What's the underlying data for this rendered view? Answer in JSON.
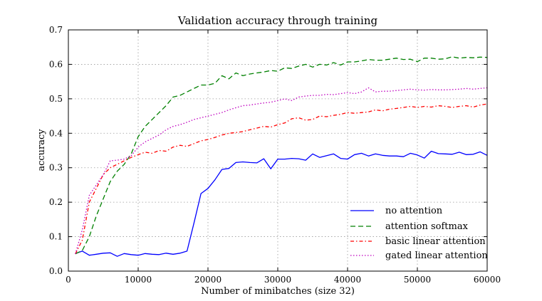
{
  "chart_data": {
    "type": "line",
    "title": "Validation accuracy through training",
    "xlabel": "Number of minibatches (size 32)",
    "ylabel": "accuracy",
    "xlim": [
      0,
      60000
    ],
    "ylim": [
      0,
      0.7
    ],
    "grid": true,
    "legend_position": "lower-right",
    "xticks": [
      0,
      10000,
      20000,
      30000,
      40000,
      50000,
      60000
    ],
    "xtick_labels": [
      "0",
      "10000",
      "20000",
      "30000",
      "40000",
      "50000",
      "60000"
    ],
    "yticks": [
      0,
      0.1,
      0.2,
      0.3,
      0.4,
      0.5,
      0.6,
      0.7
    ],
    "ytick_labels": [
      "0.0",
      "0.1",
      "0.2",
      "0.3",
      "0.4",
      "0.5",
      "0.6",
      "0.7"
    ],
    "x": [
      1000,
      2000,
      3000,
      4000,
      5000,
      6000,
      7000,
      8000,
      9000,
      10000,
      11000,
      12000,
      13000,
      14000,
      15000,
      16000,
      17000,
      18000,
      19000,
      20000,
      21000,
      22000,
      23000,
      24000,
      25000,
      26000,
      27000,
      28000,
      29000,
      30000,
      31000,
      32000,
      33000,
      34000,
      35000,
      36000,
      37000,
      38000,
      39000,
      40000,
      41000,
      42000,
      43000,
      44000,
      45000,
      46000,
      47000,
      48000,
      49000,
      50000,
      51000,
      52000,
      53000,
      54000,
      55000,
      56000,
      57000,
      58000,
      59000,
      60000
    ],
    "series": [
      {
        "name": "no attention",
        "color": "#0000ff",
        "style": "solid",
        "values": [
          0.051,
          0.058,
          0.046,
          0.049,
          0.052,
          0.053,
          0.043,
          0.051,
          0.048,
          0.046,
          0.051,
          0.049,
          0.048,
          0.052,
          0.049,
          0.052,
          0.058,
          0.14,
          0.225,
          0.24,
          0.265,
          0.295,
          0.298,
          0.315,
          0.317,
          0.315,
          0.314,
          0.326,
          0.297,
          0.325,
          0.325,
          0.327,
          0.326,
          0.322,
          0.34,
          0.33,
          0.335,
          0.34,
          0.327,
          0.325,
          0.338,
          0.342,
          0.334,
          0.34,
          0.336,
          0.334,
          0.334,
          0.332,
          0.342,
          0.337,
          0.328,
          0.348,
          0.341,
          0.34,
          0.339,
          0.345,
          0.338,
          0.339,
          0.346,
          0.336
        ]
      },
      {
        "name": "attention softmax",
        "color": "#008000",
        "style": "dashed",
        "values": [
          0.05,
          0.06,
          0.1,
          0.16,
          0.21,
          0.26,
          0.29,
          0.31,
          0.34,
          0.39,
          0.42,
          0.44,
          0.46,
          0.48,
          0.505,
          0.51,
          0.52,
          0.53,
          0.54,
          0.54,
          0.545,
          0.567,
          0.558,
          0.575,
          0.567,
          0.572,
          0.575,
          0.578,
          0.582,
          0.58,
          0.59,
          0.588,
          0.595,
          0.6,
          0.592,
          0.6,
          0.598,
          0.605,
          0.598,
          0.607,
          0.607,
          0.61,
          0.614,
          0.612,
          0.612,
          0.615,
          0.618,
          0.614,
          0.615,
          0.608,
          0.618,
          0.618,
          0.615,
          0.616,
          0.622,
          0.618,
          0.62,
          0.619,
          0.621,
          0.62
        ]
      },
      {
        "name": "basic linear attention",
        "color": "#ff0000",
        "style": "dashdot",
        "values": [
          0.05,
          0.09,
          0.2,
          0.24,
          0.28,
          0.3,
          0.31,
          0.32,
          0.33,
          0.338,
          0.345,
          0.342,
          0.35,
          0.348,
          0.36,
          0.365,
          0.362,
          0.37,
          0.378,
          0.382,
          0.388,
          0.395,
          0.4,
          0.402,
          0.405,
          0.41,
          0.415,
          0.42,
          0.418,
          0.425,
          0.43,
          0.442,
          0.445,
          0.438,
          0.44,
          0.45,
          0.448,
          0.452,
          0.455,
          0.46,
          0.458,
          0.46,
          0.462,
          0.468,
          0.465,
          0.47,
          0.472,
          0.475,
          0.478,
          0.475,
          0.478,
          0.476,
          0.48,
          0.478,
          0.475,
          0.478,
          0.48,
          0.476,
          0.482,
          0.485
        ]
      },
      {
        "name": "gated linear attention",
        "color": "#bf00bf",
        "style": "dotted",
        "values": [
          0.05,
          0.12,
          0.22,
          0.25,
          0.28,
          0.32,
          0.322,
          0.325,
          0.335,
          0.36,
          0.375,
          0.385,
          0.395,
          0.41,
          0.42,
          0.425,
          0.432,
          0.44,
          0.445,
          0.45,
          0.455,
          0.46,
          0.468,
          0.474,
          0.48,
          0.482,
          0.485,
          0.488,
          0.49,
          0.495,
          0.5,
          0.495,
          0.505,
          0.508,
          0.51,
          0.51,
          0.513,
          0.512,
          0.515,
          0.518,
          0.515,
          0.52,
          0.532,
          0.52,
          0.522,
          0.522,
          0.524,
          0.526,
          0.528,
          0.526,
          0.525,
          0.527,
          0.526,
          0.526,
          0.527,
          0.528,
          0.53,
          0.528,
          0.53,
          0.532
        ]
      }
    ]
  }
}
